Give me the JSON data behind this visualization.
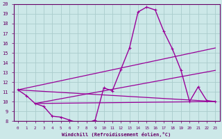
{
  "background_color": "#cce8e8",
  "grid_color": "#aacccc",
  "line_color": "#990099",
  "xlabel": "Windchill (Refroidissement éolien,°C)",
  "xlim": [
    -0.5,
    23.5
  ],
  "ylim": [
    8,
    20
  ],
  "yticks": [
    8,
    9,
    10,
    11,
    12,
    13,
    14,
    15,
    16,
    17,
    18,
    19,
    20
  ],
  "xticks": [
    0,
    1,
    2,
    3,
    4,
    5,
    6,
    7,
    8,
    9,
    10,
    11,
    12,
    13,
    14,
    15,
    16,
    17,
    18,
    19,
    20,
    21,
    22,
    23
  ],
  "main_x": [
    0,
    1,
    2,
    3,
    4,
    5,
    6,
    7,
    7.5,
    9,
    10,
    11,
    12,
    13,
    14,
    15,
    16,
    17,
    18,
    19,
    20,
    21,
    22,
    23
  ],
  "main_y": [
    11.2,
    10.6,
    9.8,
    9.5,
    8.5,
    8.4,
    8.1,
    7.8,
    7.6,
    8.1,
    11.4,
    11.1,
    13.3,
    15.5,
    19.2,
    19.7,
    19.4,
    17.2,
    15.4,
    13.2,
    10.0,
    11.5,
    10.1,
    10.0
  ],
  "line1_x": [
    0,
    23
  ],
  "line1_y": [
    11.2,
    10.0
  ],
  "line2_x": [
    0,
    23
  ],
  "line2_y": [
    11.2,
    15.5
  ],
  "line3_x": [
    2,
    23
  ],
  "line3_y": [
    9.8,
    10.0
  ],
  "line4_x": [
    2,
    23
  ],
  "line4_y": [
    9.8,
    13.2
  ]
}
